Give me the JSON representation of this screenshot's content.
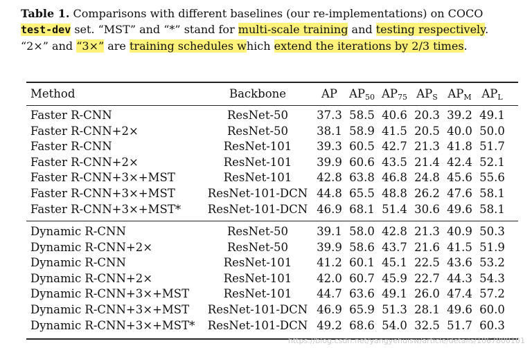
{
  "caption": {
    "label": "Table 1.",
    "line1_text": " Comparisons with different baselines (our re-implementations) on COCO",
    "line2_code": "test-dev",
    "line2_a": " set. “MST” and “*” stand for ",
    "line2_hl1": "multi-scale training",
    "line2_b": " and ",
    "line2_hl2": "testing respectively",
    "line2_c": ".",
    "line3_a": "“2×” and ",
    "line3_hl1": "“3×”",
    "line3_b": " are ",
    "line3_hl2": "training schedules w",
    "line3_c": "hich ",
    "line3_hl3": "extend the iterations by 2/3 times",
    "line3_d": "."
  },
  "table": {
    "headers": {
      "method": "Method",
      "backbone": "Backbone",
      "ap": "AP",
      "ap50": "AP",
      "ap50_sub": "50",
      "ap75": "AP",
      "ap75_sub": "75",
      "aps": "AP",
      "aps_sub": "S",
      "apm": "AP",
      "apm_sub": "M",
      "apl": "AP",
      "apl_sub": "L"
    },
    "group1": [
      {
        "method": "Faster R-CNN",
        "backbone": "ResNet-50",
        "ap": "37.3",
        "ap50": "58.5",
        "ap75": "40.6",
        "aps": "20.3",
        "apm": "39.2",
        "apl": "49.1"
      },
      {
        "method": "Faster R-CNN+2×",
        "backbone": "ResNet-50",
        "ap": "38.1",
        "ap50": "58.9",
        "ap75": "41.5",
        "aps": "20.5",
        "apm": "40.0",
        "apl": "50.0"
      },
      {
        "method": "Faster R-CNN",
        "backbone": "ResNet-101",
        "ap": "39.3",
        "ap50": "60.5",
        "ap75": "42.7",
        "aps": "21.3",
        "apm": "41.8",
        "apl": "51.7"
      },
      {
        "method": "Faster R-CNN+2×",
        "backbone": "ResNet-101",
        "ap": "39.9",
        "ap50": "60.6",
        "ap75": "43.5",
        "aps": "21.4",
        "apm": "42.4",
        "apl": "52.1"
      },
      {
        "method": "Faster R-CNN+3×+MST",
        "backbone": "ResNet-101",
        "ap": "42.8",
        "ap50": "63.8",
        "ap75": "46.8",
        "aps": "24.8",
        "apm": "45.6",
        "apl": "55.6"
      },
      {
        "method": "Faster R-CNN+3×+MST",
        "backbone": "ResNet-101-DCN",
        "ap": "44.8",
        "ap50": "65.5",
        "ap75": "48.8",
        "aps": "26.2",
        "apm": "47.6",
        "apl": "58.1"
      },
      {
        "method": "Faster R-CNN+3×+MST*",
        "backbone": "ResNet-101-DCN",
        "ap": "46.9",
        "ap50": "68.1",
        "ap75": "51.4",
        "aps": "30.6",
        "apm": "49.6",
        "apl": "58.1"
      }
    ],
    "group2": [
      {
        "method": "Dynamic R-CNN",
        "backbone": "ResNet-50",
        "ap": "39.1",
        "ap50": "58.0",
        "ap75": "42.8",
        "aps": "21.3",
        "apm": "40.9",
        "apl": "50.3"
      },
      {
        "method": "Dynamic R-CNN+2×",
        "backbone": "ResNet-50",
        "ap": "39.9",
        "ap50": "58.6",
        "ap75": "43.7",
        "aps": "21.6",
        "apm": "41.5",
        "apl": "51.9"
      },
      {
        "method": "Dynamic R-CNN",
        "backbone": "ResNet-101",
        "ap": "41.2",
        "ap50": "60.1",
        "ap75": "45.1",
        "aps": "22.5",
        "apm": "43.6",
        "apl": "53.2"
      },
      {
        "method": "Dynamic R-CNN+2×",
        "backbone": "ResNet-101",
        "ap": "42.0",
        "ap50": "60.7",
        "ap75": "45.9",
        "aps": "22.7",
        "apm": "44.3",
        "apl": "54.3"
      },
      {
        "method": "Dynamic R-CNN+3×+MST",
        "backbone": "ResNet-101",
        "ap": "44.7",
        "ap50": "63.6",
        "ap75": "49.1",
        "aps": "26.0",
        "apm": "47.4",
        "apl": "57.2"
      },
      {
        "method": "Dynamic R-CNN+3×+MST",
        "backbone": "ResNet-101-DCN",
        "ap": "46.9",
        "ap50": "65.9",
        "ap75": "51.3",
        "aps": "28.1",
        "apm": "49.6",
        "apl": "60.0"
      },
      {
        "method": "Dynamic R-CNN+3×+MST*",
        "backbone": "ResNet-101-DCN",
        "ap": "49.2",
        "ap50": "68.6",
        "ap75": "54.0",
        "aps": "32.5",
        "apm": "51.7",
        "apl": "60.3"
      }
    ]
  },
  "watermark": "https://blog.csdn.net/yangyehuisw/article/details/1067800101"
}
